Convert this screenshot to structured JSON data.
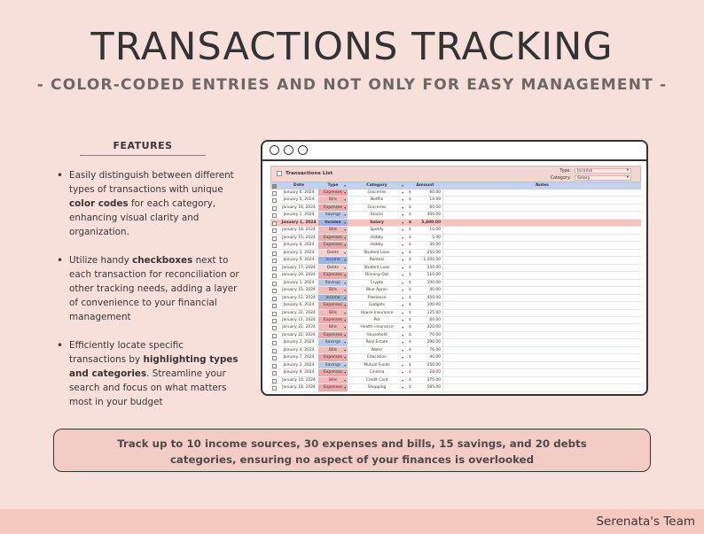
{
  "header": {
    "title": "TRANSACTIONS TRACKING",
    "subtitle": "- COLOR-CODED ENTRIES AND NOT ONLY FOR EASY MANAGEMENT -"
  },
  "features": {
    "heading": "FEATURES",
    "items": [
      {
        "pre": "Easily distinguish between different types of transactions with unique ",
        "bold": "color codes",
        "post": " for each category, enhancing visual clarity and organization."
      },
      {
        "pre": "Utilize handy ",
        "bold": "checkboxes",
        "post": " next to each transaction for reconciliation or other tracking needs, adding a layer of convenience to your financial management"
      },
      {
        "pre": "Efficiently locate specific transactions by ",
        "bold": "highlighting types and categories",
        "post": ". Streamline your search and focus on what matters most in your budget"
      }
    ]
  },
  "sheet": {
    "title": "Transactions List",
    "filters": [
      {
        "label": "Type:",
        "value": "Income"
      },
      {
        "label": "Category:",
        "value": "Salary"
      }
    ],
    "columns": [
      "Date",
      "Type",
      "Category",
      "Amount",
      "Notes"
    ],
    "currency": "$",
    "rows": [
      {
        "date": "January 6, 2024",
        "type": "Expenses",
        "category": "Groceries",
        "amount": "60.00",
        "hl": false
      },
      {
        "date": "January 5, 2024",
        "type": "Bills",
        "category": "Netflix",
        "amount": "14.99",
        "hl": false
      },
      {
        "date": "January 16, 2024",
        "type": "Expenses",
        "category": "Groceries",
        "amount": "60.00",
        "hl": false
      },
      {
        "date": "January 1, 2024",
        "type": "Savings",
        "category": "Stocks",
        "amount": "300.00",
        "hl": false
      },
      {
        "date": "January 1, 2024",
        "type": "Income",
        "category": "Salary",
        "amount": "5,400.00",
        "hl": true
      },
      {
        "date": "January 18, 2024",
        "type": "Bills",
        "category": "Spotify",
        "amount": "10.00",
        "hl": false
      },
      {
        "date": "January 15, 2024",
        "type": "Expenses",
        "category": "Hobby",
        "amount": "5.00",
        "hl": false
      },
      {
        "date": "January 4, 2024",
        "type": "Expenses",
        "category": "Hobby",
        "amount": "30.00",
        "hl": false
      },
      {
        "date": "January 3, 2024",
        "type": "Debts",
        "category": "Student Loan",
        "amount": "250.00",
        "hl": false
      },
      {
        "date": "January 5, 2024",
        "type": "Income",
        "category": "Rentals",
        "amount": "1,200.00",
        "hl": false
      },
      {
        "date": "January 17, 2024",
        "type": "Debts",
        "category": "Student Loan",
        "amount": "250.00",
        "hl": false
      },
      {
        "date": "January 20, 2024",
        "type": "Expenses",
        "category": "Dinning Out",
        "amount": "110.00",
        "hl": false
      },
      {
        "date": "January 1, 2024",
        "type": "Savings",
        "category": "Crypto",
        "amount": "100.00",
        "hl": false
      },
      {
        "date": "January 15, 2024",
        "type": "Bills",
        "category": "Blue Apron",
        "amount": "40.00",
        "hl": false
      },
      {
        "date": "January 12, 2024",
        "type": "Income",
        "category": "Freelance",
        "amount": "450.00",
        "hl": false
      },
      {
        "date": "January 6, 2024",
        "type": "Expenses",
        "category": "Gadgets",
        "amount": "100.00",
        "hl": false
      },
      {
        "date": "January 22, 2024",
        "type": "Bills",
        "category": "House Insurance",
        "amount": "125.00",
        "hl": false
      },
      {
        "date": "January 11, 2024",
        "type": "Expenses",
        "category": "Pet",
        "amount": "60.00",
        "hl": false
      },
      {
        "date": "January 22, 2024",
        "type": "Bills",
        "category": "Health insurance",
        "amount": "320.00",
        "hl": false
      },
      {
        "date": "January 22, 2024",
        "type": "Expenses",
        "category": "Household",
        "amount": "70.00",
        "hl": false
      },
      {
        "date": "January 2, 2024",
        "type": "Savings",
        "category": "Real Estate",
        "amount": "290.00",
        "hl": false
      },
      {
        "date": "January 4, 2024",
        "type": "Bills",
        "category": "Water",
        "amount": "76.00",
        "hl": false
      },
      {
        "date": "January 7, 2024",
        "type": "Expenses",
        "category": "Education",
        "amount": "40.00",
        "hl": false
      },
      {
        "date": "January 2, 2024",
        "type": "Savings",
        "category": "Mutual Funds",
        "amount": "250.00",
        "hl": false
      },
      {
        "date": "January 9, 2024",
        "type": "Expenses",
        "category": "Cinema",
        "amount": "28.00",
        "hl": false
      },
      {
        "date": "January 10, 2024",
        "type": "Bills",
        "category": "Credit Card",
        "amount": "375.00",
        "hl": false
      },
      {
        "date": "January 18, 2024",
        "type": "Expenses",
        "category": "Shopping",
        "amount": "585.00",
        "hl": false
      }
    ]
  },
  "banner": {
    "line1": "Track up to 10 income sources, 30 expenses and bills, 15 savings, and 20 debts",
    "line2": "categories, ensuring no aspect of your finances is overlooked"
  },
  "footer": {
    "brand": "Serenata's Team"
  },
  "colors": {
    "background": "#f7dfda",
    "expenses": "#eaa9aa",
    "bills": "#efbcb9",
    "savings": "#b8c9ea",
    "income": "#9db3e0",
    "debts": "#f1d4d0",
    "highlight_row": "#f4c4c0"
  }
}
